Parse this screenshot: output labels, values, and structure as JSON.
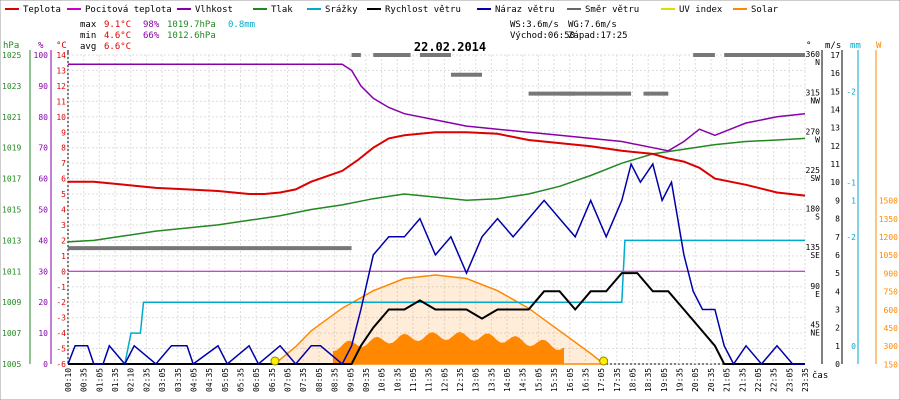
{
  "legend": [
    {
      "label": "Teplota",
      "color": "#dd0000"
    },
    {
      "label": "Pocitová teplota",
      "color": "#cc00cc"
    },
    {
      "label": "Vlhkost",
      "color": "#8800aa"
    },
    {
      "label": "Tlak",
      "color": "#228822"
    },
    {
      "label": "Srážky",
      "color": "#00aacc"
    },
    {
      "label": "Rychlost větru",
      "color": "#000000"
    },
    {
      "label": "Náraz větru",
      "color": "#0000aa"
    },
    {
      "label": "Směr větru",
      "color": "#666666"
    },
    {
      "label": "UV index",
      "color": "#dddd00"
    },
    {
      "label": "Solar",
      "color": "#ff8800"
    }
  ],
  "stats": {
    "max_label": "max",
    "max_temp": "9.1°C",
    "max_hum": "98%",
    "max_press": "1019.7hPa",
    "max_rain": "0.8mm",
    "min_label": "min",
    "min_temp": "4.6°C",
    "min_hum": "66%",
    "min_press": "1012.6hPa",
    "avg_label": "avg",
    "avg_temp": "6.6°C"
  },
  "wind_info": {
    "ws": "WS:3.6m/s",
    "wg": "WG:7.6m/s",
    "sunrise": "Východ:06:50",
    "sunset": "Západ:17:25"
  },
  "title": "22.02.2014",
  "axes": {
    "unit_hpa": "hPa",
    "unit_pct": "%",
    "unit_c": "°C",
    "unit_deg": "°",
    "unit_ms": "m/s",
    "unit_mm": "mm",
    "unit_w": "W",
    "xlabel": "čas",
    "press_ticks": [
      "1025",
      "1023",
      "1021",
      "1019",
      "1017",
      "1015",
      "1013",
      "1011",
      "1009",
      "1007",
      "1005"
    ],
    "hum_ticks": [
      "100",
      "90",
      "80",
      "70",
      "60",
      "50",
      "40",
      "30",
      "20",
      "10",
      "0"
    ],
    "temp_ticks": [
      "14",
      "13",
      "12",
      "11",
      "10",
      "9",
      "8",
      "7",
      "6",
      "5",
      "4",
      "3",
      "2",
      "1",
      "0",
      "-1",
      "-2",
      "-3",
      "-4",
      "-5",
      "-6"
    ],
    "dir_ticks": [
      {
        "deg": "360",
        "dir": "N",
        "row": 0
      },
      {
        "deg": "315",
        "dir": "NW",
        "row": 2
      },
      {
        "deg": "270",
        "dir": "W",
        "row": 4
      },
      {
        "deg": "225",
        "dir": "SW",
        "row": 6
      },
      {
        "deg": "180",
        "dir": "S",
        "row": 8
      },
      {
        "deg": "135",
        "dir": "SE",
        "row": 10
      },
      {
        "deg": "90",
        "dir": "E",
        "row": 12
      },
      {
        "deg": "45",
        "dir": "NE",
        "row": 14
      },
      {
        "deg": "",
        "dir": "",
        "row": 16
      }
    ],
    "ms_ticks": [
      "17",
      "16",
      "15",
      "14",
      "13",
      "12",
      "11",
      "10",
      "9",
      "8",
      "7",
      "6",
      "5",
      "4",
      "3",
      "2",
      "1",
      "0"
    ],
    "mm_ticks": [
      {
        "v": "-2",
        "row": 2
      },
      {
        "v": "-1",
        "row": 7
      },
      {
        "v": "1",
        "row": 8
      },
      {
        "v": "-2",
        "row": 10
      },
      {
        "v": "0",
        "row": 16
      }
    ],
    "w_ticks": [
      {
        "v": "1500",
        "row": 8
      },
      {
        "v": "1350",
        "row": 9
      },
      {
        "v": "1200",
        "row": 10
      },
      {
        "v": "1050",
        "row": 11
      },
      {
        "v": "900",
        "row": 12
      },
      {
        "v": "750",
        "row": 13
      },
      {
        "v": "600",
        "row": 14
      },
      {
        "v": "450",
        "row": 15
      },
      {
        "v": "300",
        "row": 16
      },
      {
        "v": "150",
        "row": 17
      }
    ],
    "time_ticks": [
      "00:10",
      "00:35",
      "01:05",
      "01:35",
      "02:10",
      "02:35",
      "03:05",
      "03:35",
      "04:05",
      "04:35",
      "05:05",
      "05:35",
      "06:05",
      "06:35",
      "07:05",
      "07:35",
      "08:05",
      "08:35",
      "09:05",
      "09:35",
      "10:05",
      "10:35",
      "11:05",
      "11:35",
      "12:05",
      "12:35",
      "13:05",
      "13:35",
      "14:05",
      "14:35",
      "15:05",
      "15:35",
      "16:05",
      "16:35",
      "17:05",
      "17:35",
      "18:05",
      "18:35",
      "19:05",
      "19:35",
      "20:05",
      "20:35",
      "21:05",
      "21:35",
      "22:05",
      "22:35",
      "23:05",
      "23:35"
    ]
  },
  "chart_data": {
    "type": "line",
    "title": "22.02.2014",
    "xlabel": "čas",
    "x_range_hours": [
      0.17,
      23.9
    ],
    "temp_axis_c": [
      -6,
      14
    ],
    "series": [
      {
        "name": "Teplota",
        "unit": "°C",
        "color": "#dd0000",
        "x": [
          0.17,
          1,
          2,
          3,
          4,
          5,
          6,
          6.5,
          7,
          7.5,
          8,
          9,
          9.5,
          10,
          10.5,
          11,
          12,
          13,
          14,
          15,
          16,
          17,
          18,
          19,
          19.5,
          20,
          20.5,
          21,
          22,
          23,
          23.9
        ],
        "y": [
          5.8,
          5.8,
          5.6,
          5.4,
          5.3,
          5.2,
          5.0,
          5.0,
          5.1,
          5.3,
          5.8,
          6.5,
          7.2,
          8.0,
          8.6,
          8.8,
          9.0,
          9.0,
          8.9,
          8.5,
          8.3,
          8.1,
          7.8,
          7.6,
          7.3,
          7.1,
          6.7,
          6.0,
          5.6,
          5.1,
          4.9
        ]
      },
      {
        "name": "Vlhkost",
        "unit": "%",
        "color": "#8800aa",
        "x": [
          0.17,
          2,
          4,
          6,
          8,
          9,
          9.3,
          9.6,
          10,
          10.5,
          11,
          12,
          13,
          14,
          15,
          16,
          17,
          18,
          19,
          19.5,
          20,
          20.5,
          21,
          22,
          23,
          23.9
        ],
        "y": [
          97,
          97,
          97,
          97,
          97,
          97,
          95,
          90,
          86,
          83,
          81,
          79,
          77,
          76,
          75,
          74,
          73,
          72,
          70,
          69,
          72,
          76,
          74,
          78,
          80,
          81
        ]
      },
      {
        "name": "Tlak",
        "unit": "hPa",
        "color": "#228822",
        "x": [
          0.17,
          1,
          2,
          3,
          4,
          5,
          6,
          7,
          8,
          9,
          10,
          11,
          12,
          13,
          14,
          15,
          16,
          17,
          18,
          19,
          20,
          21,
          22,
          23,
          23.9
        ],
        "y": [
          1012.9,
          1013.0,
          1013.3,
          1013.6,
          1013.8,
          1014.0,
          1014.3,
          1014.6,
          1015.0,
          1015.3,
          1015.7,
          1016.0,
          1015.8,
          1015.6,
          1015.7,
          1016.0,
          1016.5,
          1017.2,
          1018.0,
          1018.6,
          1018.9,
          1019.2,
          1019.4,
          1019.5,
          1019.6
        ]
      },
      {
        "name": "Srážky",
        "unit": "mm",
        "color": "#00aacc",
        "x": [
          0.17,
          2.0,
          2.2,
          2.5,
          2.6,
          17.5,
          18.0,
          18.1,
          23.9
        ],
        "y": [
          0,
          0,
          0.2,
          0.2,
          0.4,
          0.4,
          0.4,
          0.8,
          0.8
        ]
      },
      {
        "name": "Rychlost větru",
        "unit": "m/s",
        "color": "#000000",
        "x": [
          0.17,
          9.3,
          9.6,
          10,
          10.5,
          11,
          11.5,
          12,
          12.5,
          13,
          13.5,
          14,
          14.5,
          15,
          15.5,
          16,
          16.5,
          17,
          17.5,
          18,
          18.5,
          19,
          19.5,
          20,
          20.5,
          21,
          21.3,
          21.5,
          23.9
        ],
        "y": [
          0,
          0,
          1,
          2,
          3,
          3,
          3.5,
          3,
          3,
          3,
          2.5,
          3,
          3,
          3,
          4,
          4,
          3,
          4,
          4,
          5,
          5,
          4,
          4,
          3,
          2,
          1,
          0,
          0,
          0
        ]
      },
      {
        "name": "Náraz větru",
        "unit": "m/s",
        "color": "#0000aa",
        "x": [
          0.17,
          0.4,
          0.8,
          1,
          1.3,
          1.5,
          2,
          2.3,
          3,
          3.5,
          4,
          4.2,
          5,
          5.3,
          6,
          6.3,
          7,
          7.5,
          8,
          8.3,
          9,
          9.3,
          9.6,
          10,
          10.5,
          11,
          11.5,
          12,
          12.5,
          13,
          13.5,
          14,
          14.5,
          15,
          15.5,
          16,
          16.5,
          17,
          17.5,
          18,
          18.3,
          18.6,
          19,
          19.3,
          19.6,
          20,
          20.3,
          20.6,
          21,
          21.3,
          21.6,
          22,
          22.5,
          23,
          23.5,
          23.9
        ],
        "y": [
          0,
          1,
          1,
          0,
          0,
          1,
          0,
          1,
          0,
          1,
          1,
          0,
          1,
          0,
          1,
          0,
          1,
          0,
          1,
          1,
          0,
          1,
          3,
          6,
          7,
          7,
          8,
          6,
          7,
          5,
          7,
          8,
          7,
          8,
          9,
          8,
          7,
          9,
          7,
          9,
          11,
          10,
          11,
          9,
          10,
          6,
          4,
          3,
          3,
          1,
          0,
          1,
          0,
          1,
          0,
          0
        ]
      },
      {
        "name": "Solar",
        "unit": "W",
        "color": "#ff8800",
        "x": [
          6.83,
          7.5,
          8,
          9,
          10,
          11,
          12,
          13,
          14,
          15,
          16,
          17,
          17.42
        ],
        "y": [
          0,
          100,
          190,
          320,
          420,
          490,
          510,
          490,
          420,
          320,
          190,
          60,
          0
        ]
      }
    ],
    "wind_direction_deg": [
      {
        "x": [
          0.17,
          9.3
        ],
        "y": 135
      },
      {
        "x": [
          9.3,
          9.6
        ],
        "y": 360
      },
      {
        "x": [
          10,
          11.2
        ],
        "y": 360
      },
      {
        "x": [
          11.5,
          12.5
        ],
        "y": 360
      },
      {
        "x": [
          12.5,
          13.5
        ],
        "y": 337
      },
      {
        "x": [
          15,
          16.5
        ],
        "y": 315
      },
      {
        "x": [
          16,
          18.3
        ],
        "y": 315
      },
      {
        "x": [
          18.7,
          19.5
        ],
        "y": 315
      },
      {
        "x": [
          20.3,
          21
        ],
        "y": 360
      },
      {
        "x": [
          21.3,
          23.9
        ],
        "y": 360
      }
    ],
    "sunrise": "06:50",
    "sunset": "17:25"
  }
}
